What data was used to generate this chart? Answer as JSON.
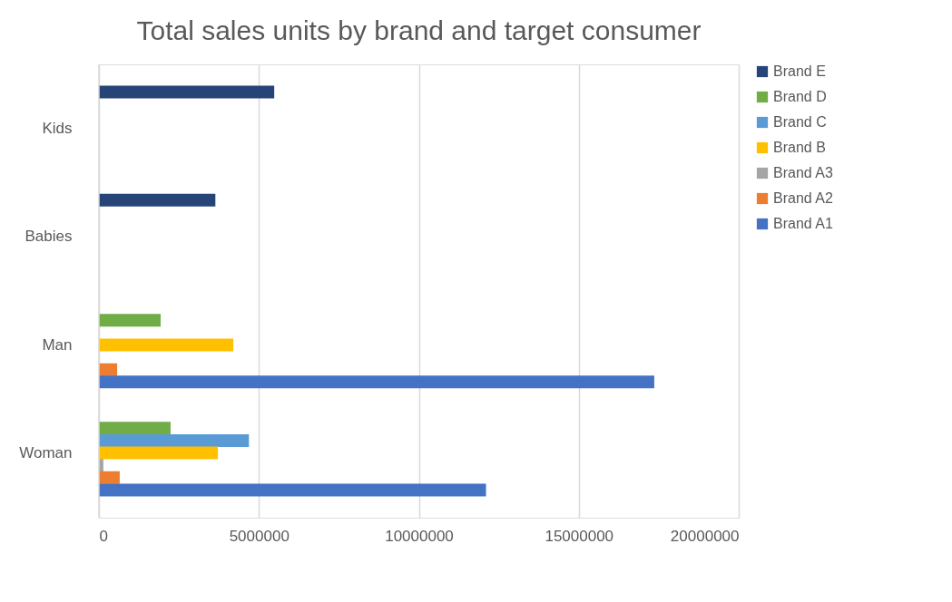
{
  "chart_data": {
    "type": "bar",
    "orientation": "horizontal",
    "title": "Total sales units by brand and target consumer",
    "categories": [
      "Kids",
      "Babies",
      "Man",
      "Woman"
    ],
    "series": [
      {
        "name": "Brand E",
        "color": "#264478",
        "values": [
          5480000,
          3640000,
          null,
          null
        ]
      },
      {
        "name": "Brand D",
        "color": "#70ad47",
        "values": [
          null,
          null,
          1930000,
          2240000
        ]
      },
      {
        "name": "Brand C",
        "color": "#5b9bd5",
        "values": [
          null,
          null,
          null,
          4690000
        ]
      },
      {
        "name": "Brand B",
        "color": "#ffc000",
        "values": [
          null,
          null,
          4200000,
          3720000
        ]
      },
      {
        "name": "Brand A3",
        "color": "#a5a5a5",
        "values": [
          null,
          null,
          null,
          140000
        ]
      },
      {
        "name": "Brand A2",
        "color": "#ed7d31",
        "values": [
          null,
          null,
          570000,
          650000
        ]
      },
      {
        "name": "Brand A1",
        "color": "#4472c4",
        "values": [
          null,
          null,
          17360000,
          12100000
        ]
      }
    ],
    "xlim": [
      0,
      20000000
    ],
    "xticks": [
      0,
      5000000,
      10000000,
      15000000,
      20000000
    ],
    "grid": "x",
    "legend": "right"
  }
}
